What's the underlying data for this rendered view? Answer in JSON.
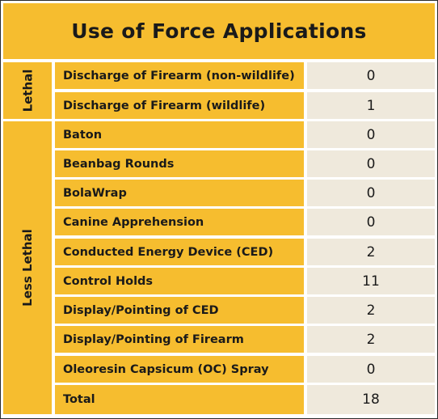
{
  "title": "Use of Force Applications",
  "groups": {
    "lethal": "Lethal",
    "less_lethal": "Less Lethal"
  },
  "rows": [
    {
      "label": "Discharge of Firearm (non-wildlife)",
      "value": "0"
    },
    {
      "label": "Discharge of Firearm (wildlife)",
      "value": "1"
    },
    {
      "label": "Baton",
      "value": "0"
    },
    {
      "label": "Beanbag Rounds",
      "value": "0"
    },
    {
      "label": "BolaWrap",
      "value": "0"
    },
    {
      "label": "Canine Apprehension",
      "value": "0"
    },
    {
      "label": "Conducted Energy Device (CED)",
      "value": "2"
    },
    {
      "label": "Control Holds",
      "value": "11"
    },
    {
      "label": "Display/Pointing of CED",
      "value": "2"
    },
    {
      "label": "Display/Pointing of Firearm",
      "value": "2"
    },
    {
      "label": "Oleoresin Capsicum (OC) Spray",
      "value": "0"
    },
    {
      "label": "Total",
      "value": "18"
    }
  ],
  "colors": {
    "header": "#f6bd2f",
    "label_cells": "#f6bd2f",
    "value_cells": "#efe9dc",
    "border": "#2b2b2b"
  }
}
